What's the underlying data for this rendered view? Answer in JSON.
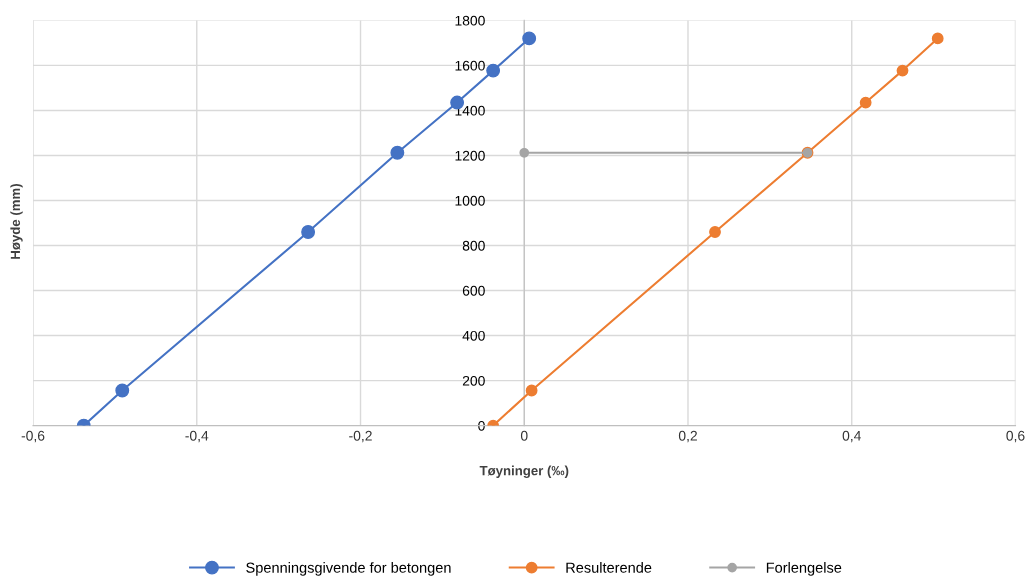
{
  "chart_data": {
    "type": "line",
    "xlabel": "Tøyninger (‰)",
    "ylabel": "Høyde (mm)",
    "xlim": [
      -0.6,
      0.6
    ],
    "xticks": [
      {
        "value": -0.6,
        "label": "-0,6"
      },
      {
        "value": -0.4,
        "label": "-0,4"
      },
      {
        "value": -0.2,
        "label": "-0,2"
      },
      {
        "value": 0,
        "label": "0"
      },
      {
        "value": 0.2,
        "label": "0,2"
      },
      {
        "value": 0.4,
        "label": "0,4"
      },
      {
        "value": 0.6,
        "label": "0,6"
      }
    ],
    "ylim": [
      0,
      1800
    ],
    "yticks": [
      0,
      200,
      400,
      600,
      800,
      1000,
      1200,
      1400,
      1600,
      1800
    ],
    "grid": true,
    "legend": "bottom",
    "marker": "circle",
    "line_style": "solid",
    "series": [
      {
        "name": "Spenningsgivende for betongen",
        "color": "#4472c4",
        "x": [
          -0.538,
          -0.491,
          -0.264,
          -0.155,
          -0.082,
          -0.038,
          0.006
        ],
        "values": [
          0,
          156,
          860,
          1212,
          1435,
          1577,
          1720
        ]
      },
      {
        "name": "Resulterende",
        "color": "#ed7d31",
        "x": [
          -0.038,
          0.009,
          0.233,
          0.346,
          0.417,
          0.462,
          0.505
        ],
        "values": [
          0,
          156,
          860,
          1212,
          1435,
          1577,
          1720
        ]
      },
      {
        "name": "Forlengelse",
        "color": "#a5a5a5",
        "x": [
          0,
          0.346
        ],
        "values": [
          1212,
          1212
        ]
      }
    ]
  }
}
